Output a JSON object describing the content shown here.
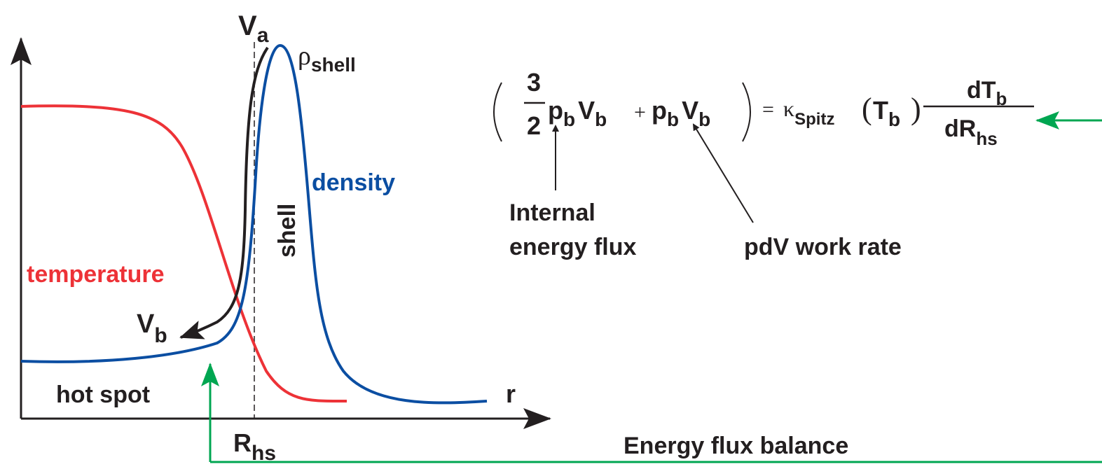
{
  "diagram": {
    "va": {
      "main": "V",
      "sub": "a"
    },
    "rho_shell": {
      "main": "ρ",
      "sub": "shell"
    },
    "density": "density",
    "shell": "shell",
    "temperature": "temperature",
    "vb": {
      "main": "V",
      "sub": "b"
    },
    "hot_spot": "hot spot",
    "r": "r",
    "rhs": {
      "main": "R",
      "sub": "hs"
    }
  },
  "equation": {
    "numerator": "3",
    "denominator": "2",
    "term1": [
      "p",
      "b",
      "V",
      "b"
    ],
    "plus": "+",
    "term2": [
      "p",
      "b",
      "V",
      "b"
    ],
    "equals": "=",
    "kappa": "κ",
    "kappa_sub": "Spitz",
    "arg": [
      "T",
      "b"
    ],
    "d_num": [
      "dT",
      "b"
    ],
    "d_den": [
      "dR",
      "hs"
    ]
  },
  "annotations": {
    "internal": [
      "Internal",
      "energy flux"
    ],
    "pdv": "pdV work rate"
  },
  "caption": "Energy flux balance"
}
